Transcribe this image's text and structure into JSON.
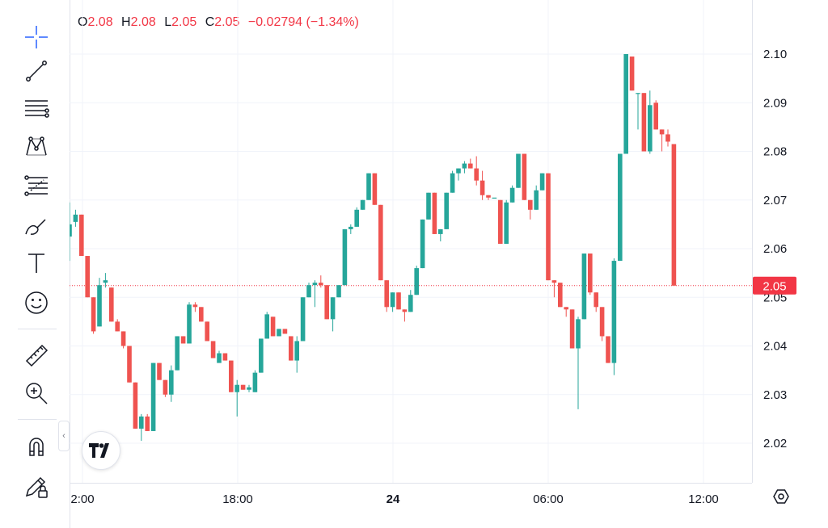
{
  "legend": {
    "o_label": "O",
    "o_value": "2.08",
    "h_label": "H",
    "h_value": "2.08",
    "l_label": "L",
    "l_value": "2.05",
    "c_label": "C",
    "c_value": "2.05",
    "change": "−0.02794 (−1.34%)"
  },
  "toolbar": {
    "tools": [
      "crosshair-icon",
      "trend-line-icon",
      "horizontal-lines-icon",
      "pattern-icon",
      "fib-icon",
      "brush-icon",
      "text-icon",
      "emoji-icon",
      "ruler-icon",
      "zoom-in-icon",
      "magnet-icon",
      "lock-drawing-icon"
    ],
    "collapse_glyph": "‹"
  },
  "colors": {
    "up": "#26a69a",
    "down": "#ef5350",
    "price_line": "#f23645",
    "grid": "#f0f3fa",
    "text": "#131722"
  },
  "chart_data": {
    "type": "candlestick",
    "y_ticks": [
      "2.10",
      "2.09",
      "2.08",
      "2.07",
      "2.06",
      "2.05",
      "2.04",
      "2.03",
      "2.02"
    ],
    "ylim": [
      2.015,
      2.105
    ],
    "x_ticks": [
      {
        "label": "2:00",
        "bold": false
      },
      {
        "label": "18:00",
        "bold": false
      },
      {
        "label": "24",
        "bold": true
      },
      {
        "label": "06:00",
        "bold": false
      },
      {
        "label": "12:00",
        "bold": false
      }
    ],
    "current_price": "2.05",
    "current_value": 2.0524,
    "grid": true,
    "candles": [
      [
        2.0625,
        2.0695,
        2.0575,
        2.065
      ],
      [
        2.0655,
        2.068,
        2.0645,
        2.067
      ],
      [
        2.067,
        2.067,
        2.0585,
        2.0585
      ],
      [
        2.0585,
        2.0585,
        2.05,
        2.05
      ],
      [
        2.05,
        2.05,
        2.0425,
        2.043
      ],
      [
        2.044,
        2.054,
        2.044,
        2.0525
      ],
      [
        2.053,
        2.055,
        2.052,
        2.0535
      ],
      [
        2.052,
        2.052,
        2.045,
        2.045
      ],
      [
        2.045,
        2.0455,
        2.043,
        2.043
      ],
      [
        2.043,
        2.043,
        2.0395,
        2.04
      ],
      [
        2.04,
        2.04,
        2.0325,
        2.0325
      ],
      [
        2.0325,
        2.0325,
        2.023,
        2.023
      ],
      [
        2.023,
        2.026,
        2.0205,
        2.0255
      ],
      [
        2.0255,
        2.026,
        2.0225,
        2.0225
      ],
      [
        2.0225,
        2.0365,
        2.0225,
        2.0365
      ],
      [
        2.0365,
        2.0365,
        2.033,
        2.033
      ],
      [
        2.033,
        2.033,
        2.0295,
        2.03
      ],
      [
        2.03,
        2.036,
        2.0285,
        2.035
      ],
      [
        2.035,
        2.042,
        2.035,
        2.042
      ],
      [
        2.042,
        2.042,
        2.0405,
        2.0405
      ],
      [
        2.0405,
        2.049,
        2.0405,
        2.0485
      ],
      [
        2.0485,
        2.049,
        2.047,
        2.048
      ],
      [
        2.048,
        2.048,
        2.045,
        2.045
      ],
      [
        2.045,
        2.045,
        2.041,
        2.041
      ],
      [
        2.041,
        2.041,
        2.0375,
        2.0375
      ],
      [
        2.0365,
        2.039,
        2.037,
        2.0385
      ],
      [
        2.0385,
        2.0385,
        2.037,
        2.037
      ],
      [
        2.037,
        2.037,
        2.0305,
        2.0305
      ],
      [
        2.0305,
        2.033,
        2.0255,
        2.032
      ],
      [
        2.032,
        2.032,
        2.031,
        2.031
      ],
      [
        2.031,
        2.032,
        2.0305,
        2.0315
      ],
      [
        2.0305,
        2.035,
        2.0305,
        2.0345
      ],
      [
        2.0345,
        2.0415,
        2.0345,
        2.0415
      ],
      [
        2.0415,
        2.047,
        2.0415,
        2.0465
      ],
      [
        2.046,
        2.046,
        2.042,
        2.042
      ],
      [
        2.042,
        2.0435,
        2.042,
        2.0435
      ],
      [
        2.0435,
        2.0435,
        2.0425,
        2.0425
      ],
      [
        2.042,
        2.042,
        2.037,
        2.037
      ],
      [
        2.037,
        2.042,
        2.0345,
        2.041
      ],
      [
        2.041,
        2.05,
        2.041,
        2.05
      ],
      [
        2.05,
        2.053,
        2.05,
        2.0525
      ],
      [
        2.0525,
        2.0535,
        2.048,
        2.053
      ],
      [
        2.053,
        2.0545,
        2.052,
        2.0525
      ],
      [
        2.0525,
        2.0525,
        2.0455,
        2.0455
      ],
      [
        2.0455,
        2.05,
        2.043,
        2.05
      ],
      [
        2.05,
        2.0525,
        2.05,
        2.0525
      ],
      [
        2.0525,
        2.064,
        2.0525,
        2.064
      ],
      [
        2.064,
        2.065,
        2.063,
        2.0645
      ],
      [
        2.0645,
        2.0685,
        2.0645,
        2.068
      ],
      [
        2.068,
        2.07,
        2.068,
        2.07
      ],
      [
        2.07,
        2.0755,
        2.07,
        2.0755
      ],
      [
        2.0755,
        2.0755,
        2.069,
        2.069
      ],
      [
        2.069,
        2.069,
        2.0535,
        2.0535
      ],
      [
        2.0535,
        2.0535,
        2.047,
        2.048
      ],
      [
        2.048,
        2.051,
        2.047,
        2.051
      ],
      [
        2.051,
        2.051,
        2.0475,
        2.0475
      ],
      [
        2.0475,
        2.0475,
        2.045,
        2.047
      ],
      [
        2.047,
        2.0515,
        2.047,
        2.0505
      ],
      [
        2.0505,
        2.0565,
        2.0505,
        2.056
      ],
      [
        2.056,
        2.066,
        2.056,
        2.066
      ],
      [
        2.066,
        2.0715,
        2.066,
        2.0715
      ],
      [
        2.0715,
        2.0715,
        2.063,
        2.063
      ],
      [
        2.063,
        2.064,
        2.0615,
        2.064
      ],
      [
        2.064,
        2.0715,
        2.064,
        2.0715
      ],
      [
        2.0715,
        2.076,
        2.0715,
        2.0755
      ],
      [
        2.0755,
        2.0765,
        2.074,
        2.0765
      ],
      [
        2.0765,
        2.078,
        2.0755,
        2.0775
      ],
      [
        2.0775,
        2.0785,
        2.0765,
        2.0765
      ],
      [
        2.0765,
        2.079,
        2.073,
        2.074
      ],
      [
        2.074,
        2.076,
        2.07,
        2.071
      ],
      [
        2.071,
        2.071,
        2.07,
        2.0705
      ],
      [
        2.0705,
        2.0705,
        2.0705,
        2.0705
      ],
      [
        2.07,
        2.07,
        2.061,
        2.061
      ],
      [
        2.061,
        2.07,
        2.061,
        2.0695
      ],
      [
        2.0695,
        2.073,
        2.0695,
        2.0725
      ],
      [
        2.0725,
        2.0795,
        2.0725,
        2.0795
      ],
      [
        2.0795,
        2.0795,
        2.07,
        2.07
      ],
      [
        2.07,
        2.07,
        2.066,
        2.068
      ],
      [
        2.068,
        2.073,
        2.068,
        2.072
      ],
      [
        2.072,
        2.0755,
        2.072,
        2.0755
      ],
      [
        2.0755,
        2.0755,
        2.0535,
        2.0535
      ],
      [
        2.0535,
        2.0535,
        2.05,
        2.053
      ],
      [
        2.053,
        2.053,
        2.048,
        2.048
      ],
      [
        2.048,
        2.048,
        2.046,
        2.0475
      ],
      [
        2.0475,
        2.0475,
        2.0395,
        2.0395
      ],
      [
        2.0395,
        2.046,
        2.027,
        2.0455
      ],
      [
        2.0455,
        2.059,
        2.0455,
        2.059
      ],
      [
        2.059,
        2.059,
        2.0505,
        2.051
      ],
      [
        2.051,
        2.051,
        2.047,
        2.048
      ],
      [
        2.048,
        2.048,
        2.041,
        2.042
      ],
      [
        2.042,
        2.042,
        2.0365,
        2.0365
      ],
      [
        2.0365,
        2.058,
        2.034,
        2.0575
      ],
      [
        2.0575,
        2.0795,
        2.0575,
        2.0795
      ],
      [
        2.0795,
        2.1,
        2.0795,
        2.1
      ],
      [
        2.0995,
        2.0995,
        2.0925,
        2.0925
      ],
      [
        2.092,
        2.092,
        2.0845,
        2.092
      ],
      [
        2.092,
        2.092,
        2.08,
        2.08
      ],
      [
        2.08,
        2.0925,
        2.0795,
        2.0895
      ],
      [
        2.09,
        2.0905,
        2.0845,
        2.0845
      ],
      [
        2.0845,
        2.0845,
        2.08,
        2.0835
      ],
      [
        2.0835,
        2.0845,
        2.081,
        2.082
      ],
      [
        2.0815,
        2.0815,
        2.0524,
        2.0524
      ]
    ]
  }
}
